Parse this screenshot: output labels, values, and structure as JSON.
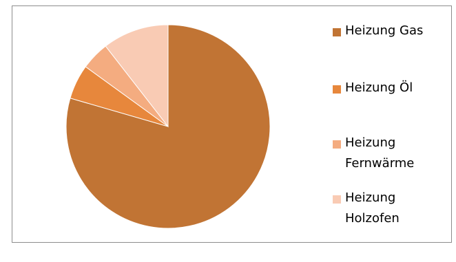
{
  "chart_data": {
    "type": "pie",
    "title": "",
    "legend_position": "right",
    "series": [
      {
        "values": [
          79.5,
          5.5,
          4.5,
          10.5
        ],
        "colors": [
          "#C17434",
          "#E7873C",
          "#F4AC80",
          "#F9CBB4"
        ]
      }
    ],
    "categories": [
      "Heizung Gas",
      "Heizung Öl",
      "Heizung Fernwärme",
      "Heizung Holzofen"
    ],
    "legend": [
      {
        "label": "Heizung Gas",
        "color": "#C17434"
      },
      {
        "label": "Heizung Öl",
        "color": "#E7873C"
      },
      {
        "label": "Heizung Fernwärme",
        "color": "#F4AC80"
      },
      {
        "label": "Heizung Holzofen",
        "color": "#F9CBB4"
      }
    ]
  }
}
